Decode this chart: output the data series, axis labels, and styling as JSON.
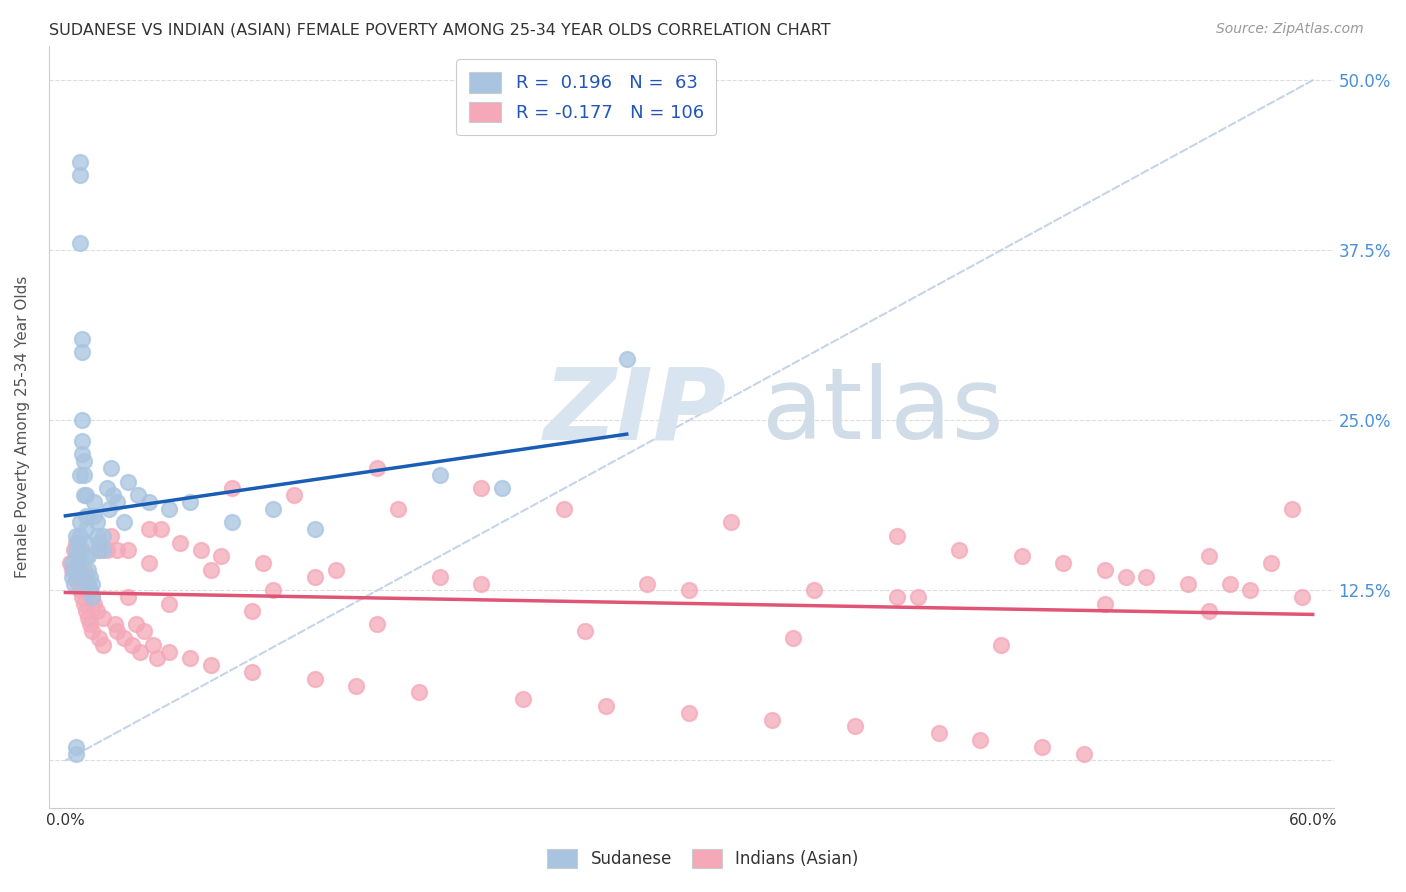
{
  "title": "SUDANESE VS INDIAN (ASIAN) FEMALE POVERTY AMONG 25-34 YEAR OLDS CORRELATION CHART",
  "source": "Source: ZipAtlas.com",
  "ylabel": "Female Poverty Among 25-34 Year Olds",
  "blue_R": 0.196,
  "blue_N": 63,
  "pink_R": -0.177,
  "pink_N": 106,
  "blue_color": "#a8c4e0",
  "pink_color": "#f4a8b8",
  "blue_line_color": "#1a5db5",
  "pink_line_color": "#e05575",
  "dashed_line_color": "#c0d0e8",
  "watermark_zip_color": "#d8e4f0",
  "watermark_atlas_color": "#d0dce8",
  "right_tick_color": "#4a90d9",
  "blue_scatter_x": [
    0.003,
    0.003,
    0.004,
    0.004,
    0.005,
    0.005,
    0.005,
    0.005,
    0.006,
    0.006,
    0.006,
    0.006,
    0.007,
    0.007,
    0.007,
    0.007,
    0.007,
    0.007,
    0.008,
    0.008,
    0.008,
    0.008,
    0.008,
    0.009,
    0.009,
    0.009,
    0.01,
    0.01,
    0.01,
    0.01,
    0.01,
    0.011,
    0.011,
    0.011,
    0.012,
    0.012,
    0.013,
    0.013,
    0.014,
    0.014,
    0.015,
    0.015,
    0.016,
    0.016,
    0.018,
    0.018,
    0.02,
    0.021,
    0.022,
    0.023,
    0.025,
    0.028,
    0.03,
    0.035,
    0.04,
    0.05,
    0.06,
    0.08,
    0.1,
    0.12,
    0.18,
    0.21,
    0.27
  ],
  "blue_scatter_y": [
    0.145,
    0.135,
    0.14,
    0.13,
    0.165,
    0.155,
    0.005,
    0.01,
    0.16,
    0.15,
    0.145,
    0.14,
    0.44,
    0.43,
    0.38,
    0.21,
    0.175,
    0.165,
    0.31,
    0.3,
    0.25,
    0.235,
    0.225,
    0.22,
    0.21,
    0.195,
    0.195,
    0.18,
    0.17,
    0.16,
    0.15,
    0.15,
    0.14,
    0.13,
    0.135,
    0.125,
    0.13,
    0.12,
    0.19,
    0.18,
    0.175,
    0.165,
    0.16,
    0.155,
    0.165,
    0.155,
    0.2,
    0.185,
    0.215,
    0.195,
    0.19,
    0.175,
    0.205,
    0.195,
    0.19,
    0.185,
    0.19,
    0.175,
    0.185,
    0.17,
    0.21,
    0.2,
    0.295
  ],
  "pink_scatter_x": [
    0.002,
    0.003,
    0.004,
    0.005,
    0.005,
    0.006,
    0.006,
    0.007,
    0.007,
    0.008,
    0.008,
    0.008,
    0.009,
    0.009,
    0.01,
    0.01,
    0.01,
    0.011,
    0.011,
    0.012,
    0.012,
    0.013,
    0.013,
    0.014,
    0.015,
    0.016,
    0.016,
    0.018,
    0.018,
    0.02,
    0.022,
    0.024,
    0.025,
    0.028,
    0.03,
    0.032,
    0.034,
    0.036,
    0.038,
    0.04,
    0.042,
    0.044,
    0.046,
    0.05,
    0.055,
    0.06,
    0.065,
    0.07,
    0.075,
    0.08,
    0.09,
    0.095,
    0.1,
    0.11,
    0.12,
    0.13,
    0.14,
    0.15,
    0.16,
    0.17,
    0.18,
    0.2,
    0.22,
    0.24,
    0.26,
    0.28,
    0.3,
    0.32,
    0.34,
    0.36,
    0.38,
    0.4,
    0.41,
    0.42,
    0.43,
    0.44,
    0.46,
    0.47,
    0.48,
    0.49,
    0.5,
    0.51,
    0.52,
    0.54,
    0.55,
    0.56,
    0.57,
    0.58,
    0.59,
    0.595,
    0.025,
    0.03,
    0.04,
    0.05,
    0.07,
    0.09,
    0.12,
    0.15,
    0.2,
    0.25,
    0.3,
    0.35,
    0.4,
    0.45,
    0.5,
    0.55
  ],
  "pink_scatter_y": [
    0.145,
    0.14,
    0.155,
    0.16,
    0.135,
    0.145,
    0.13,
    0.14,
    0.125,
    0.135,
    0.155,
    0.12,
    0.14,
    0.115,
    0.135,
    0.125,
    0.11,
    0.13,
    0.105,
    0.125,
    0.1,
    0.12,
    0.095,
    0.115,
    0.11,
    0.155,
    0.09,
    0.105,
    0.085,
    0.155,
    0.165,
    0.1,
    0.095,
    0.09,
    0.155,
    0.085,
    0.1,
    0.08,
    0.095,
    0.17,
    0.085,
    0.075,
    0.17,
    0.08,
    0.16,
    0.075,
    0.155,
    0.07,
    0.15,
    0.2,
    0.065,
    0.145,
    0.125,
    0.195,
    0.06,
    0.14,
    0.055,
    0.215,
    0.185,
    0.05,
    0.135,
    0.2,
    0.045,
    0.185,
    0.04,
    0.13,
    0.035,
    0.175,
    0.03,
    0.125,
    0.025,
    0.165,
    0.12,
    0.02,
    0.155,
    0.015,
    0.15,
    0.01,
    0.145,
    0.005,
    0.14,
    0.135,
    0.135,
    0.13,
    0.15,
    0.13,
    0.125,
    0.145,
    0.185,
    0.12,
    0.155,
    0.12,
    0.145,
    0.115,
    0.14,
    0.11,
    0.135,
    0.1,
    0.13,
    0.095,
    0.125,
    0.09,
    0.12,
    0.085,
    0.115,
    0.11
  ]
}
